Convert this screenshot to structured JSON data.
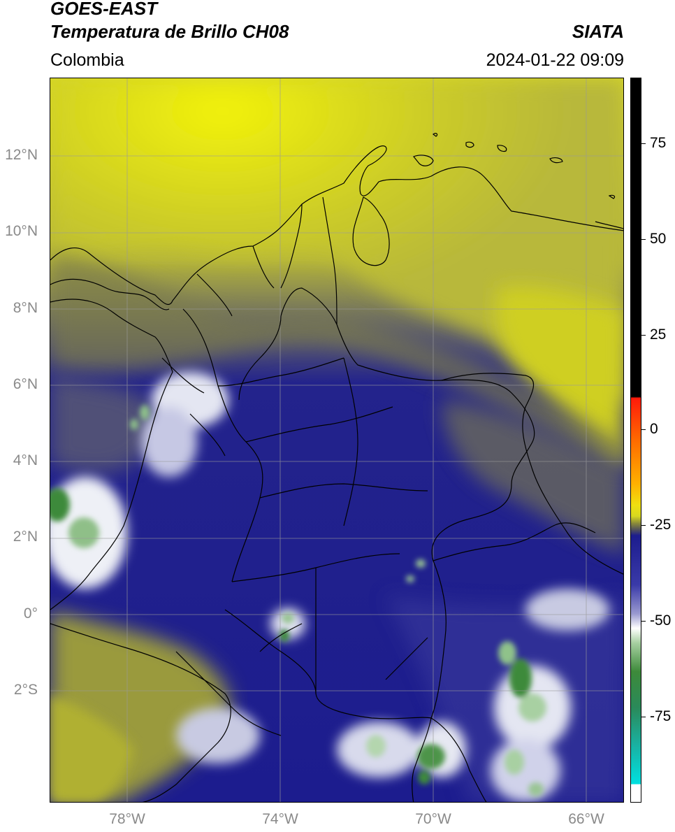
{
  "header": {
    "satellite": "GOES-EAST",
    "product": "Temperatura de Brillo CH08",
    "region": "Colombia",
    "agency": "SIATA",
    "datetime": "2024-01-22 09:09"
  },
  "map": {
    "lat_labels": [
      "12°N",
      "10°N",
      "8°N",
      "6°N",
      "4°N",
      "2°N",
      "0°",
      "2°S"
    ],
    "lon_labels": [
      "78°W",
      "74°W",
      "70°W",
      "66°W"
    ],
    "colors": {
      "warm_yellow": "#d4d420",
      "olive": "#8a8a3a",
      "deep_blue": "#1c1c8e",
      "cold_white": "#e8ecf4",
      "cold_green": "#3d8a3a",
      "border": "#000000",
      "grid": "#999999"
    }
  },
  "colorbar": {
    "labels": [
      "75",
      "50",
      "25",
      "0",
      "-25",
      "-50",
      "-75"
    ],
    "values": [
      75,
      50,
      25,
      0,
      -25,
      -50,
      -75
    ]
  }
}
